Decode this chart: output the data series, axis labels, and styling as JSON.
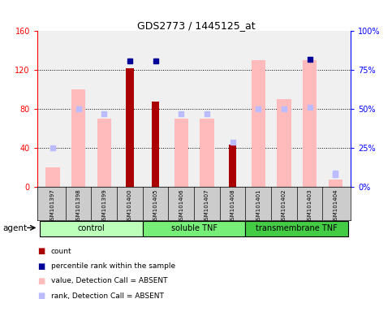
{
  "title": "GDS2773 / 1445125_at",
  "samples": [
    "GSM101397",
    "GSM101398",
    "GSM101399",
    "GSM101400",
    "GSM101405",
    "GSM101406",
    "GSM101407",
    "GSM101408",
    "GSM101401",
    "GSM101402",
    "GSM101403",
    "GSM101404"
  ],
  "groups": [
    {
      "label": "control",
      "start": 0,
      "end": 4
    },
    {
      "label": "soluble TNF",
      "start": 4,
      "end": 8
    },
    {
      "label": "transmembrane TNF",
      "start": 8,
      "end": 12
    }
  ],
  "group_colors": [
    "#bbffbb",
    "#77ee77",
    "#44cc44"
  ],
  "count_values": [
    null,
    null,
    null,
    122,
    88,
    null,
    null,
    44,
    null,
    null,
    null,
    null
  ],
  "percentile_values": [
    null,
    null,
    null,
    81,
    81,
    null,
    null,
    null,
    null,
    null,
    82,
    null
  ],
  "absent_value_bars": [
    20,
    100,
    70,
    null,
    null,
    70,
    70,
    null,
    130,
    90,
    130,
    8
  ],
  "absent_rank_pct": [
    25,
    50,
    47,
    null,
    null,
    47,
    47,
    null,
    50,
    50,
    51,
    9
  ],
  "percentile_absent": [
    null,
    null,
    null,
    null,
    null,
    null,
    null,
    29,
    null,
    null,
    null,
    8
  ],
  "left_ylim": [
    0,
    160
  ],
  "right_ylim": [
    0,
    100
  ],
  "left_yticks": [
    0,
    40,
    80,
    120,
    160
  ],
  "right_yticks": [
    0,
    25,
    50,
    75,
    100
  ],
  "right_yticklabels": [
    "0%",
    "25%",
    "50%",
    "75%",
    "100%"
  ],
  "color_count": "#aa0000",
  "color_percentile": "#000099",
  "color_absent_value": "#ffbbbb",
  "color_absent_rank": "#bbbbff",
  "background_plot": "#f0f0f0",
  "agent_label": "agent"
}
